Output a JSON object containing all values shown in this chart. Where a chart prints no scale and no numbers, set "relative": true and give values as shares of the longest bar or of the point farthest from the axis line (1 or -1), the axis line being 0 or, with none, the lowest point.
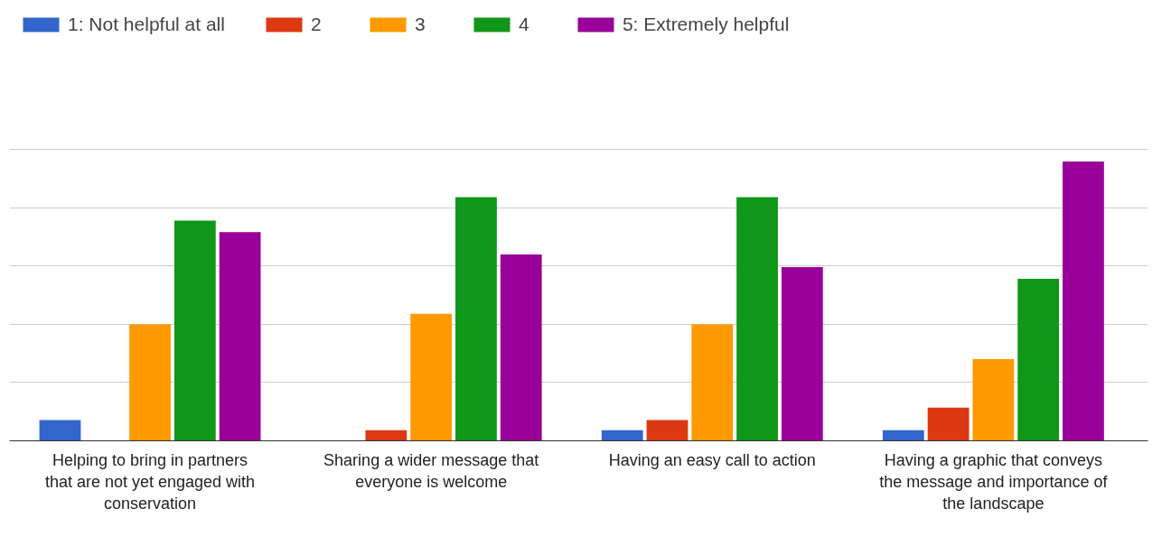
{
  "chart_data": {
    "type": "bar",
    "relative": true,
    "grid": "y",
    "legend": "top left",
    "categories": [
      "Helping to bring in partners that are not yet engaged with conservation",
      "Sharing a wider message that everyone is welcome",
      "Having an easy call to action",
      "Having a graphic that conveys the message and importance of the landscape"
    ],
    "series": [
      {
        "name": "1: Not helpful at all",
        "color": "#3366cc",
        "values": [
          0.074,
          0,
          0.038,
          0.038
        ]
      },
      {
        "name": "2",
        "color": "#dc3912",
        "values": [
          0,
          0.038,
          0.074,
          0.119
        ]
      },
      {
        "name": "3",
        "color": "#ff9900",
        "values": [
          0.417,
          0.455,
          0.417,
          0.292
        ]
      },
      {
        "name": "4",
        "color": "#109618",
        "values": [
          0.788,
          0.872,
          0.872,
          0.58
        ]
      },
      {
        "name": "5: Extremely helpful",
        "color": "#990099",
        "values": [
          0.747,
          0.667,
          0.622,
          1
        ]
      }
    ]
  }
}
